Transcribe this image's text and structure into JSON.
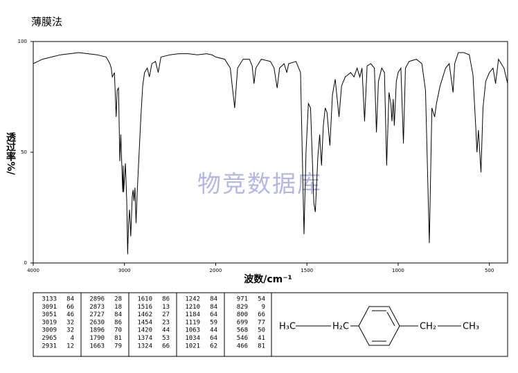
{
  "chart_data": {
    "type": "line",
    "title": "薄膜法",
    "y_label": "透过率%/",
    "x_label": "波数/cm⁻¹",
    "watermark": "物竞数据库",
    "color": "#000000",
    "xlim": [
      4000,
      400
    ],
    "xticks": [
      4000,
      3000,
      2000,
      1500,
      1000,
      500
    ],
    "ylim": [
      0,
      100
    ],
    "yticks": [
      0,
      50,
      100
    ],
    "x": [
      4000,
      3950,
      3900,
      3800,
      3700,
      3600,
      3500,
      3400,
      3300,
      3200,
      3160,
      3145,
      3133,
      3110,
      3091,
      3080,
      3065,
      3051,
      3040,
      3030,
      3019,
      3014,
      3009,
      2990,
      2975,
      2965,
      2955,
      2945,
      2931,
      2915,
      2905,
      2896,
      2885,
      2873,
      2860,
      2845,
      2820,
      2800,
      2780,
      2750,
      2727,
      2700,
      2660,
      2630,
      2600,
      2500,
      2400,
      2300,
      2200,
      2100,
      2040,
      2000,
      1950,
      1920,
      1896,
      1880,
      1850,
      1815,
      1800,
      1790,
      1780,
      1750,
      1700,
      1680,
      1663,
      1650,
      1625,
      1610,
      1600,
      1560,
      1535,
      1516,
      1505,
      1492,
      1480,
      1462,
      1454,
      1440,
      1430,
      1420,
      1410,
      1400,
      1390,
      1374,
      1360,
      1345,
      1324,
      1310,
      1290,
      1260,
      1242,
      1225,
      1210,
      1198,
      1184,
      1170,
      1150,
      1130,
      1119,
      1108,
      1090,
      1075,
      1063,
      1050,
      1040,
      1034,
      1027,
      1021,
      1010,
      1000,
      985,
      971,
      960,
      940,
      900,
      870,
      850,
      829,
      815,
      800,
      790,
      770,
      740,
      720,
      699,
      690,
      670,
      640,
      610,
      590,
      575,
      568,
      560,
      546,
      535,
      520,
      500,
      480,
      466,
      450,
      420,
      400
    ],
    "values": [
      90,
      91,
      92,
      93,
      94,
      94.5,
      95,
      94.5,
      94,
      93,
      90,
      88,
      84,
      86,
      66,
      78,
      79,
      46,
      58,
      45,
      32,
      44,
      32,
      45,
      28,
      4,
      18,
      24,
      12,
      30,
      33,
      28,
      34,
      18,
      32,
      45,
      66,
      80,
      86,
      88,
      84,
      90,
      91,
      86,
      93,
      94,
      94.5,
      94.5,
      94,
      94.5,
      94,
      93,
      92,
      88,
      70,
      88,
      92,
      92,
      89,
      81,
      88,
      92,
      91,
      88,
      79,
      88,
      90,
      86,
      90,
      91,
      86,
      13,
      50,
      72,
      70,
      27,
      23,
      48,
      58,
      44,
      62,
      70,
      68,
      53,
      76,
      83,
      66,
      80,
      84,
      86,
      84,
      88,
      84,
      88,
      64,
      89,
      90,
      88,
      59,
      82,
      88,
      86,
      44,
      77,
      72,
      64,
      74,
      62,
      82,
      86,
      88,
      54,
      88,
      91,
      92,
      90,
      78,
      9,
      70,
      66,
      72,
      80,
      88,
      90,
      77,
      90,
      95,
      95,
      94,
      85,
      62,
      50,
      60,
      41,
      70,
      82,
      86,
      88,
      81,
      92,
      88,
      81
    ],
    "peaks": [
      [
        3133,
        84
      ],
      [
        3091,
        66
      ],
      [
        3051,
        46
      ],
      [
        3019,
        32
      ],
      [
        3009,
        32
      ],
      [
        2965,
        4
      ],
      [
        2931,
        12
      ],
      [
        2896,
        28
      ],
      [
        2873,
        18
      ],
      [
        2727,
        84
      ],
      [
        2630,
        86
      ],
      [
        1896,
        70
      ],
      [
        1790,
        81
      ],
      [
        1663,
        79
      ],
      [
        1610,
        86
      ],
      [
        1516,
        13
      ],
      [
        1462,
        27
      ],
      [
        1454,
        23
      ],
      [
        1420,
        44
      ],
      [
        1374,
        53
      ],
      [
        1324,
        66
      ],
      [
        1242,
        84
      ],
      [
        1210,
        84
      ],
      [
        1184,
        64
      ],
      [
        1119,
        59
      ],
      [
        1063,
        44
      ],
      [
        1034,
        64
      ],
      [
        1021,
        62
      ],
      [
        971,
        54
      ],
      [
        829,
        9
      ],
      [
        800,
        66
      ],
      [
        699,
        77
      ],
      [
        568,
        50
      ],
      [
        546,
        41
      ],
      [
        466,
        81
      ]
    ]
  },
  "structure": {
    "labels": [
      "H₃C",
      "H₂C",
      "CH₂",
      "CH₃"
    ]
  }
}
